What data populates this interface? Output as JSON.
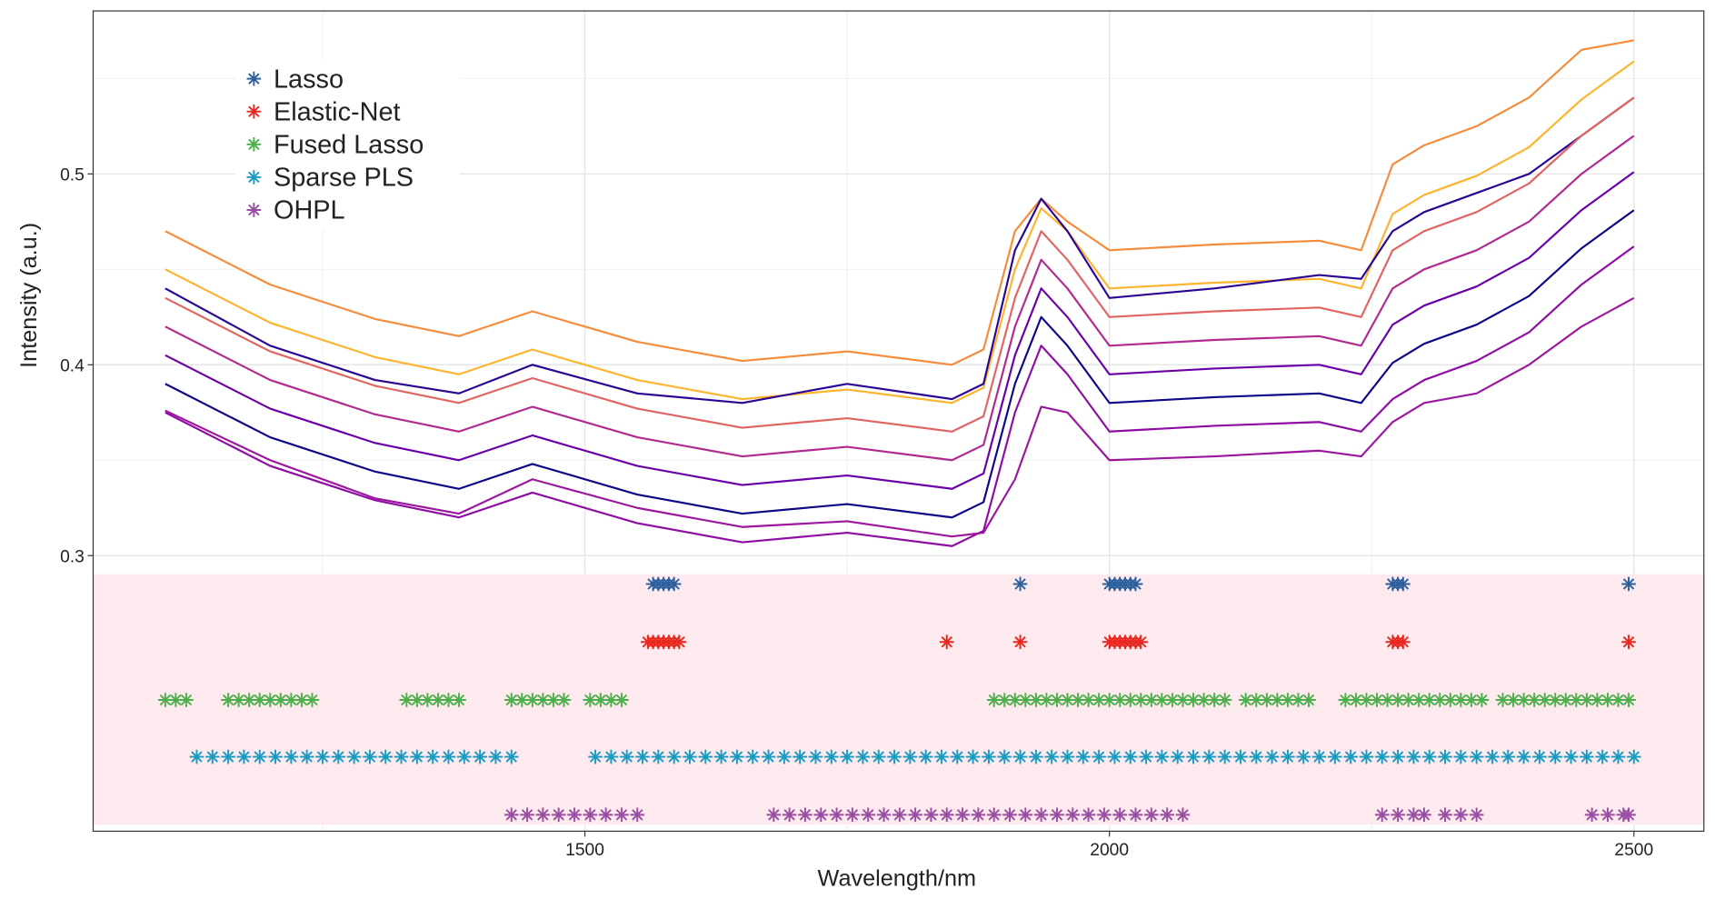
{
  "chart_data": {
    "type": "line",
    "xlabel": "Wavelength/nm",
    "ylabel": "Intensity (a.u.)",
    "xlim": [
      1031.25,
      2566.67
    ],
    "ylim": [
      0.1556,
      0.5854
    ],
    "xticks": [
      1500,
      2000,
      2500
    ],
    "xminor": [
      1250,
      1750,
      2250
    ],
    "yticks": [
      0.3,
      0.4,
      0.5
    ],
    "yminor": [
      0.35,
      0.45,
      0.55
    ],
    "grid": true,
    "legend": "top-left",
    "x": [
      1100,
      1200,
      1300,
      1380,
      1450,
      1550,
      1650,
      1750,
      1850,
      1880,
      1910,
      1935,
      1960,
      2000,
      2100,
      2200,
      2240,
      2270,
      2300,
      2350,
      2400,
      2450,
      2500
    ],
    "series": [
      {
        "color": "#f58c3c",
        "values": [
          0.47,
          0.442,
          0.424,
          0.415,
          0.428,
          0.412,
          0.402,
          0.407,
          0.4,
          0.408,
          0.47,
          0.487,
          0.475,
          0.46,
          0.463,
          0.465,
          0.46,
          0.505,
          0.515,
          0.525,
          0.54,
          0.565,
          0.57
        ]
      },
      {
        "color": "#fdb42f",
        "values": [
          0.45,
          0.422,
          0.404,
          0.395,
          0.408,
          0.392,
          0.382,
          0.387,
          0.38,
          0.388,
          0.45,
          0.482,
          0.47,
          0.44,
          0.443,
          0.445,
          0.44,
          0.479,
          0.489,
          0.499,
          0.514,
          0.539,
          0.559
        ]
      },
      {
        "color": "#2a0593",
        "values": [
          0.44,
          0.41,
          0.392,
          0.385,
          0.4,
          0.385,
          0.38,
          0.39,
          0.382,
          0.39,
          0.46,
          0.487,
          0.47,
          0.435,
          0.44,
          0.447,
          0.445,
          0.47,
          0.48,
          0.49,
          0.5,
          0.52,
          0.54
        ]
      },
      {
        "color": "#e16462",
        "values": [
          0.435,
          0.407,
          0.389,
          0.38,
          0.393,
          0.377,
          0.367,
          0.372,
          0.365,
          0.373,
          0.435,
          0.47,
          0.455,
          0.425,
          0.428,
          0.43,
          0.425,
          0.46,
          0.47,
          0.48,
          0.495,
          0.52,
          0.54
        ]
      },
      {
        "color": "#b12a90",
        "values": [
          0.42,
          0.392,
          0.374,
          0.365,
          0.378,
          0.362,
          0.352,
          0.357,
          0.35,
          0.358,
          0.42,
          0.455,
          0.44,
          0.41,
          0.413,
          0.415,
          0.41,
          0.44,
          0.45,
          0.46,
          0.475,
          0.5,
          0.52
        ]
      },
      {
        "color": "#6a00a8",
        "values": [
          0.405,
          0.377,
          0.359,
          0.35,
          0.363,
          0.347,
          0.337,
          0.342,
          0.335,
          0.343,
          0.405,
          0.44,
          0.425,
          0.395,
          0.398,
          0.4,
          0.395,
          0.421,
          0.431,
          0.441,
          0.456,
          0.481,
          0.501
        ]
      },
      {
        "color": "#0d0887",
        "values": [
          0.39,
          0.362,
          0.344,
          0.335,
          0.348,
          0.332,
          0.322,
          0.327,
          0.32,
          0.328,
          0.39,
          0.425,
          0.41,
          0.38,
          0.383,
          0.385,
          0.38,
          0.401,
          0.411,
          0.421,
          0.436,
          0.461,
          0.481
        ]
      },
      {
        "color": "#8f0da4",
        "values": [
          0.375,
          0.347,
          0.329,
          0.32,
          0.333,
          0.317,
          0.307,
          0.312,
          0.305,
          0.313,
          0.375,
          0.41,
          0.395,
          0.365,
          0.368,
          0.37,
          0.365,
          0.382,
          0.392,
          0.402,
          0.417,
          0.442,
          0.462
        ]
      },
      {
        "color": "#9c179e",
        "values": [
          0.376,
          0.35,
          0.33,
          0.322,
          0.34,
          0.325,
          0.315,
          0.318,
          0.31,
          0.312,
          0.34,
          0.378,
          0.375,
          0.35,
          0.352,
          0.355,
          0.352,
          0.37,
          0.38,
          0.385,
          0.4,
          0.42,
          0.435
        ]
      }
    ],
    "selections": [
      {
        "name": "Lasso",
        "color": "#2c5f9b",
        "x": [
          1565,
          1570,
          1575,
          1580,
          1585,
          1915,
          2000,
          2005,
          2010,
          2015,
          2020,
          2025,
          2270,
          2275,
          2280,
          2495
        ]
      },
      {
        "name": "Elastic-Net",
        "color": "#e8281e",
        "x": [
          1560,
          1565,
          1570,
          1575,
          1580,
          1585,
          1590,
          1845,
          1915,
          2000,
          2005,
          2010,
          2015,
          2020,
          2025,
          2030,
          2270,
          2275,
          2280,
          2495
        ]
      },
      {
        "name": "Fused Lasso",
        "color": "#4daf4a",
        "x": [
          1100,
          1110,
          1120,
          1160,
          1170,
          1180,
          1190,
          1200,
          1210,
          1220,
          1230,
          1240,
          1330,
          1340,
          1350,
          1360,
          1370,
          1380,
          1430,
          1440,
          1450,
          1460,
          1470,
          1480,
          1505,
          1515,
          1525,
          1535,
          1890,
          1900,
          1910,
          1920,
          1930,
          1940,
          1950,
          1960,
          1970,
          1980,
          1990,
          2000,
          2010,
          2020,
          2030,
          2040,
          2050,
          2060,
          2070,
          2080,
          2090,
          2100,
          2110,
          2130,
          2140,
          2150,
          2160,
          2170,
          2180,
          2190,
          2225,
          2235,
          2245,
          2255,
          2265,
          2275,
          2285,
          2295,
          2305,
          2315,
          2325,
          2335,
          2345,
          2355,
          2375,
          2385,
          2395,
          2405,
          2415,
          2425,
          2435,
          2445,
          2455,
          2465,
          2475,
          2485,
          2495
        ]
      },
      {
        "name": "Sparse PLS",
        "color": "#1a9bc0",
        "x": [
          1130,
          1145,
          1160,
          1175,
          1190,
          1205,
          1220,
          1235,
          1250,
          1265,
          1280,
          1295,
          1310,
          1325,
          1340,
          1355,
          1370,
          1385,
          1400,
          1415,
          1430,
          1510,
          1525,
          1540,
          1555,
          1570,
          1585,
          1600,
          1615,
          1630,
          1645,
          1660,
          1675,
          1690,
          1705,
          1720,
          1735,
          1750,
          1765,
          1780,
          1795,
          1810,
          1825,
          1840,
          1855,
          1870,
          1885,
          1900,
          1915,
          1930,
          1945,
          1960,
          1975,
          1990,
          2005,
          2020,
          2035,
          2050,
          2065,
          2080,
          2095,
          2110,
          2125,
          2140,
          2155,
          2170,
          2185,
          2200,
          2215,
          2230,
          2245,
          2260,
          2275,
          2290,
          2305,
          2320,
          2335,
          2350,
          2365,
          2380,
          2395,
          2410,
          2425,
          2440,
          2455,
          2470,
          2485,
          2500
        ]
      },
      {
        "name": "OHPL",
        "color": "#984ea3",
        "x": [
          1430,
          1445,
          1460,
          1475,
          1490,
          1505,
          1520,
          1535,
          1550,
          1680,
          1695,
          1710,
          1725,
          1740,
          1755,
          1770,
          1785,
          1800,
          1815,
          1830,
          1845,
          1860,
          1875,
          1890,
          1905,
          1920,
          1935,
          1950,
          1965,
          1980,
          1995,
          2010,
          2025,
          2040,
          2055,
          2070,
          2260,
          2275,
          2290,
          2300,
          2320,
          2335,
          2350,
          2460,
          2475,
          2490,
          2495
        ]
      }
    ]
  }
}
